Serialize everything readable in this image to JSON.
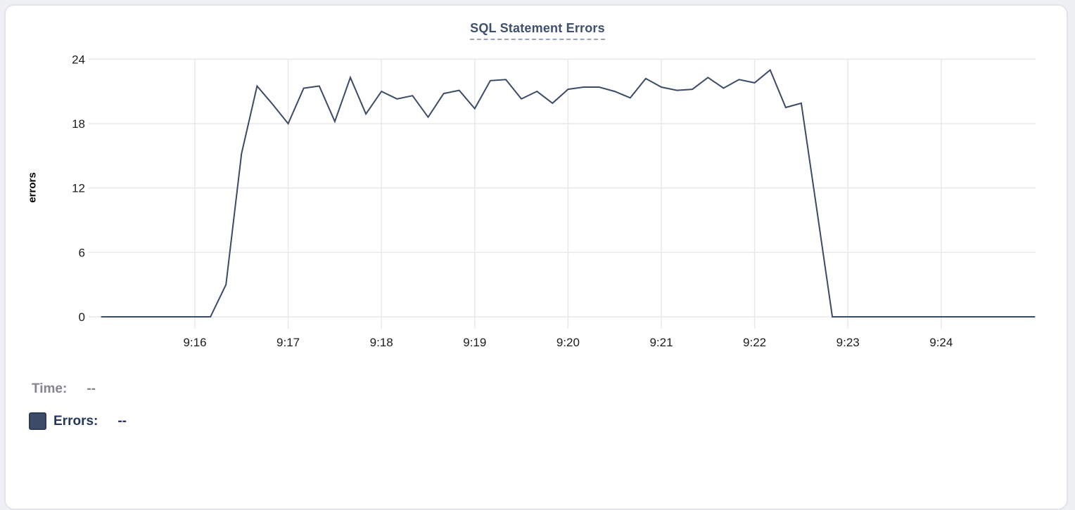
{
  "card": {
    "title": "SQL Statement Errors"
  },
  "chart_data": {
    "type": "line",
    "title": "SQL Statement Errors",
    "xlabel": "",
    "ylabel": "errors",
    "ylim": [
      0,
      24
    ],
    "y_ticks": [
      0,
      6,
      12,
      18,
      24
    ],
    "x_ticks": [
      "9:16",
      "9:17",
      "9:18",
      "9:19",
      "9:20",
      "9:21",
      "9:22",
      "9:23",
      "9:24"
    ],
    "x_range": [
      "9:15:00",
      "9:25:00"
    ],
    "grid": true,
    "legend_position": "bottom-left",
    "series": [
      {
        "name": "Errors",
        "color": "#3b4a66",
        "x": [
          "9:15:00",
          "9:15:10",
          "9:15:20",
          "9:15:30",
          "9:15:40",
          "9:15:50",
          "9:16:00",
          "9:16:10",
          "9:16:20",
          "9:16:30",
          "9:16:40",
          "9:16:50",
          "9:17:00",
          "9:17:10",
          "9:17:20",
          "9:17:30",
          "9:17:40",
          "9:17:50",
          "9:18:00",
          "9:18:10",
          "9:18:20",
          "9:18:30",
          "9:18:40",
          "9:18:50",
          "9:19:00",
          "9:19:10",
          "9:19:20",
          "9:19:30",
          "9:19:40",
          "9:19:50",
          "9:20:00",
          "9:20:10",
          "9:20:20",
          "9:20:30",
          "9:20:40",
          "9:20:50",
          "9:21:00",
          "9:21:10",
          "9:21:20",
          "9:21:30",
          "9:21:40",
          "9:21:50",
          "9:22:00",
          "9:22:10",
          "9:22:20",
          "9:22:30",
          "9:22:40",
          "9:22:50",
          "9:23:00",
          "9:23:10",
          "9:23:20",
          "9:23:30",
          "9:23:40",
          "9:23:50",
          "9:24:00",
          "9:24:10",
          "9:24:20",
          "9:24:30",
          "9:24:40",
          "9:24:50",
          "9:25:00"
        ],
        "values": [
          0,
          0,
          0,
          0,
          0,
          0,
          0,
          0,
          3,
          15.2,
          21.5,
          19.8,
          18,
          21.3,
          21.5,
          18.2,
          22.3,
          18.9,
          21,
          20.3,
          20.6,
          18.6,
          20.8,
          21.1,
          19.4,
          22,
          22.1,
          20.3,
          21,
          19.9,
          21.2,
          21.4,
          21.4,
          21,
          20.4,
          22.2,
          21.4,
          21.1,
          21.2,
          22.3,
          21.3,
          22.1,
          21.8,
          23,
          19.5,
          19.9,
          10,
          0,
          0,
          0,
          0,
          0,
          0,
          0,
          0,
          0,
          0,
          0,
          0,
          0,
          0
        ]
      }
    ]
  },
  "tooltip": {
    "time_label": "Time:",
    "time_value": "--",
    "errors_label": "Errors:",
    "errors_value": "--"
  },
  "colors": {
    "line": "#3b4a66",
    "title": "#3e4f70",
    "grid": "#e8e8ec",
    "swatch": "#3e4c69",
    "muted_text": "#85858c",
    "legend_text": "#26365c"
  }
}
